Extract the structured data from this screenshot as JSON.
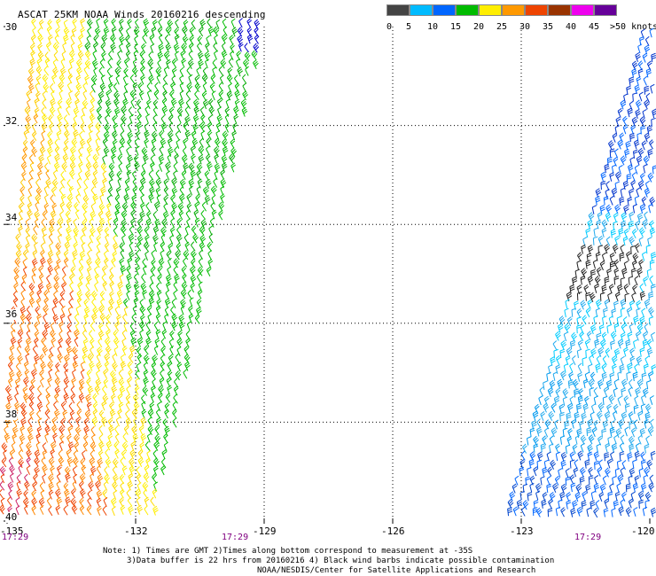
{
  "title": "ASCAT 25KM NOAA Winds 20160216 descending",
  "legend": {
    "colors": [
      "#444444",
      "#00bbff",
      "#0066ff",
      "#00bb00",
      "#ffee00",
      "#ff9900",
      "#ee4400",
      "#993300",
      "#ee00ee",
      "#660099"
    ],
    "labels": [
      "0",
      "5",
      "10",
      "15",
      "20",
      "25",
      "30",
      "35",
      "40",
      "45",
      ">50 knots"
    ]
  },
  "y_axis": {
    "labels": [
      "30",
      "32",
      "34",
      "36",
      "38",
      "40"
    ]
  },
  "x_axis": {
    "labels": [
      "-135",
      "-132",
      "-129",
      "-126",
      "-123",
      "-120"
    ]
  },
  "time_labels": [
    "17:29",
    "17:29",
    "17:29"
  ],
  "notes": {
    "line1": "Note: 1) Times are GMT 2)Times along bottom correspond to measurement at -35S",
    "line2": "3)Data buffer is 22 hrs from 20160216 4) Black wind barbs indicate possible contamination",
    "line3": "NOAA/NESDIS/Center for Satellite Applications and Research"
  },
  "map": {
    "lon_range": [
      -135,
      -120
    ],
    "lat_range": [
      -30,
      -40
    ],
    "lon_grid": [
      -132,
      -129,
      -126,
      -123
    ],
    "lat_grid": [
      -32,
      -34,
      -36,
      -38
    ]
  }
}
